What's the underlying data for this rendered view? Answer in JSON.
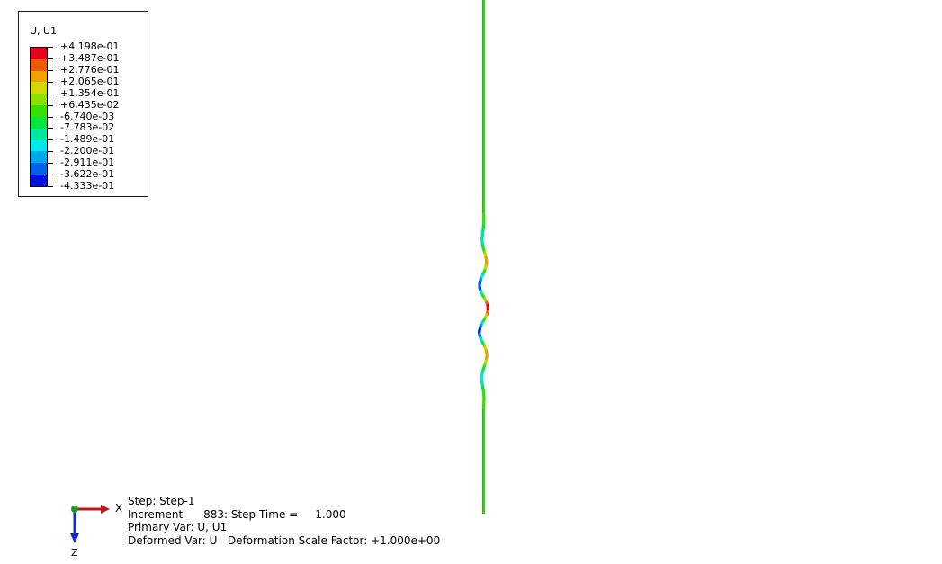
{
  "legend": {
    "title": "U, U1",
    "values": [
      "+4.198e-01",
      "+3.487e-01",
      "+2.776e-01",
      "+2.065e-01",
      "+1.354e-01",
      "+6.435e-02",
      "-6.740e-03",
      "-7.783e-02",
      "-1.489e-01",
      "-2.200e-01",
      "-2.911e-01",
      "-3.622e-01",
      "-4.333e-01"
    ],
    "colors": [
      "#e8001c",
      "#ea5a0a",
      "#f0a000",
      "#d4d800",
      "#8ee000",
      "#38e000",
      "#00e840",
      "#00e89e",
      "#00e8e8",
      "#00a8f0",
      "#0060e8",
      "#0010e0"
    ]
  },
  "triad": {
    "x_label": "X",
    "z_label": "Z",
    "x_color": "#c0141e",
    "z_color": "#1a2ad0",
    "y_color": "#1a9a2a"
  },
  "info": {
    "step": "Step: Step-1",
    "increment": "Increment      883: Step Time =     1.000",
    "primary_var": "Primary Var: U, U1",
    "deformed_var": "Deformed Var: U   Deformation Scale Factor: +1.000e+00"
  }
}
